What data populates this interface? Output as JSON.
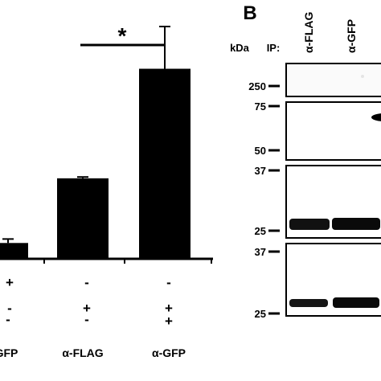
{
  "panel_b_label": "B",
  "panel_a": {
    "chart_data": {
      "type": "bar",
      "categories": [
        "",
        "",
        ""
      ],
      "values": [
        0.6,
        3.05,
        7.2
      ],
      "errors": [
        0.15,
        0.05,
        1.6
      ],
      "ylim": [
        0,
        9.5
      ],
      "significance": {
        "from": 1,
        "to": 2,
        "label": "*"
      }
    },
    "sign_rows": [
      [
        "+",
        "-",
        "-"
      ],
      [
        "-",
        "+",
        "+"
      ],
      [
        "-",
        "-",
        "+"
      ]
    ],
    "x_labels": [
      "GFP",
      "α-FLAG",
      "α-GFP"
    ]
  },
  "panel_b": {
    "unit_label": "kDa",
    "ip_label": "IP:",
    "lane_labels": [
      "α-FLAG",
      "α-GFP"
    ],
    "markers": [
      "250",
      "75",
      "50",
      "37",
      "25",
      "37",
      "25"
    ]
  }
}
